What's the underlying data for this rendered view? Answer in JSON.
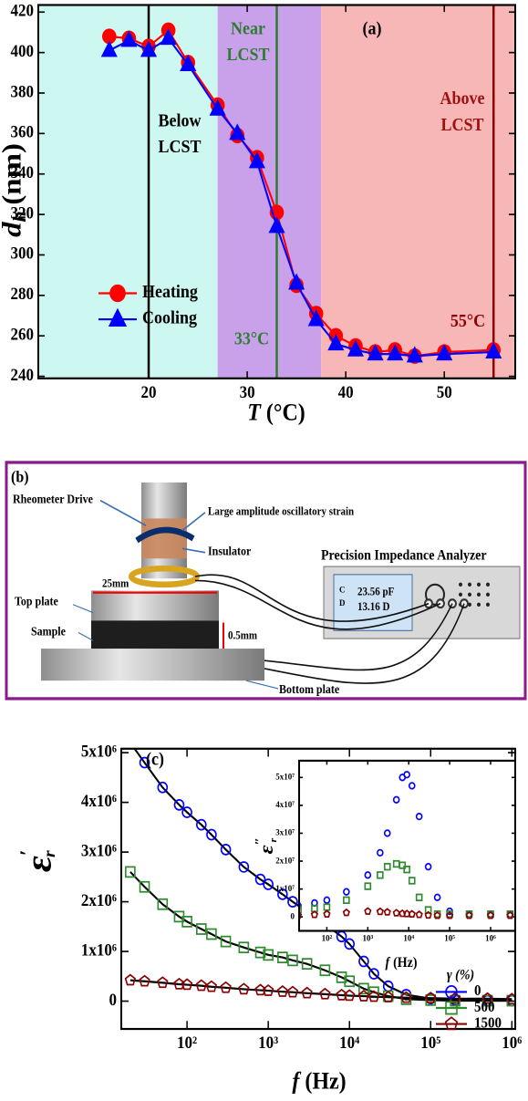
{
  "chart_data": [
    {
      "type": "line",
      "panel_label": "(a)",
      "xlabel": {
        "symbol": "T",
        "unit": "(°C)"
      },
      "ylabel": {
        "symbol": "d",
        "subscript": "h",
        "unit": "(nm)"
      },
      "x": [
        16,
        18,
        20,
        22,
        24,
        27,
        29,
        31,
        33,
        35,
        37,
        39,
        41,
        43,
        45,
        47,
        50,
        55
      ],
      "series": [
        {
          "name": "Heating",
          "color": "#ff0000",
          "marker": "circle",
          "values": [
            408,
            407,
            403,
            411,
            395,
            374,
            359,
            348,
            321,
            285,
            271,
            260,
            255,
            252,
            253,
            250,
            252,
            253
          ]
        },
        {
          "name": "Cooling",
          "color": "#0000ff",
          "marker": "triangle",
          "values": [
            401,
            406,
            401,
            407,
            394,
            372,
            360,
            346,
            314,
            286,
            268,
            256,
            253,
            251,
            251,
            250,
            251,
            252
          ]
        }
      ],
      "filled_markers": true,
      "xlim": [
        8.8,
        57.2
      ],
      "ylim": [
        239,
        423.5
      ],
      "xticks": [
        20,
        30,
        40,
        50
      ],
      "yticks": [
        240,
        260,
        280,
        300,
        320,
        340,
        360,
        380,
        400,
        420
      ],
      "regions": [
        {
          "label": [
            "Below",
            "LCST"
          ],
          "range": [
            8.8,
            27
          ],
          "color": "#cdf8f1",
          "label_color": "#000000"
        },
        {
          "label": [
            "Near",
            "LCST"
          ],
          "range": [
            27,
            37.5
          ],
          "color": "#c9a0ea",
          "label_color": "#2e7d32"
        },
        {
          "label": [
            "Above",
            "LCST"
          ],
          "range": [
            37.5,
            57.2
          ],
          "color": "#f7b7b7",
          "label_color": "#a01010"
        }
      ],
      "vlines": [
        {
          "x": 20,
          "color": "#000000"
        },
        {
          "x": 33,
          "color": "#2e7d32",
          "label": "33°C"
        },
        {
          "x": 55,
          "color": "#8b0000",
          "label": "55°C"
        }
      ],
      "legend": {
        "position": "lower left"
      }
    },
    {
      "type": "line",
      "log_x": true,
      "panel_label": "(c)",
      "xlabel": {
        "symbol": "f",
        "unit": "(Hz)"
      },
      "ylabel": {
        "symbol": "ε",
        "prime": "′",
        "subscript": "r"
      },
      "x": [
        20,
        30,
        50,
        80,
        100,
        150,
        200,
        300,
        500,
        800,
        1000,
        1500,
        2000,
        3000,
        5000,
        8000,
        10000,
        15000,
        20000,
        30000,
        50000,
        100000,
        200000,
        500000,
        1000000
      ],
      "series": [
        {
          "name": "0",
          "color": "#0000ff",
          "marker": "circle",
          "values": [
            5200000,
            4800000,
            4300000,
            3950000,
            3800000,
            3550000,
            3350000,
            3050000,
            2700000,
            2450000,
            2350000,
            2150000,
            2000000,
            1800000,
            1550000,
            1300000,
            1150000,
            800000,
            550000,
            300000,
            130000,
            50000,
            20000,
            10000,
            10000
          ]
        },
        {
          "name": "500",
          "color": "#2e8b2e",
          "marker": "square",
          "values": [
            2600000,
            2300000,
            1950000,
            1700000,
            1600000,
            1450000,
            1350000,
            1200000,
            1080000,
            980000,
            930000,
            880000,
            820000,
            750000,
            620000,
            480000,
            400000,
            250000,
            180000,
            100000,
            40000,
            20000,
            10000,
            10000,
            10000
          ]
        },
        {
          "name": "1500",
          "color": "#8b0000",
          "marker": "pentagon",
          "values": [
            420000,
            400000,
            370000,
            340000,
            330000,
            310000,
            290000,
            270000,
            240000,
            220000,
            210000,
            190000,
            180000,
            160000,
            140000,
            120000,
            110000,
            100000,
            90000,
            80000,
            70000,
            60000,
            50000,
            50000,
            40000
          ]
        }
      ],
      "fit_color": "#000000",
      "xlim": [
        15.5,
        1100000
      ],
      "ylim": [
        -560000,
        5080000
      ],
      "xticks": [
        {
          "value": 100,
          "label": "10²"
        },
        {
          "value": 1000,
          "label": "10³"
        },
        {
          "value": 10000,
          "label": "10⁴"
        },
        {
          "value": 100000,
          "label": "10⁵"
        },
        {
          "value": 1000000,
          "label": "10⁶"
        }
      ],
      "yticks": [
        0,
        {
          "value": 1000000,
          "label": "1x10⁶"
        },
        {
          "value": 2000000,
          "label": "2x10⁶"
        },
        {
          "value": 3000000,
          "label": "3x10⁶"
        },
        {
          "value": 4000000,
          "label": "4x10⁶"
        },
        {
          "value": 5000000,
          "label": "5x10⁶"
        }
      ],
      "legend": {
        "title": "γ (%)",
        "position": "lower right"
      },
      "inset": {
        "type": "scatter",
        "log_x": true,
        "xlabel": {
          "symbol": "f",
          "unit": "(Hz)"
        },
        "ylabel": {
          "symbol": "ε",
          "prime": "″",
          "subscript": "r"
        },
        "x": [
          20,
          50,
          100,
          300,
          1000,
          2000,
          3000,
          5000,
          7000,
          9000,
          12000,
          18000,
          30000,
          50000,
          100000,
          300000,
          1000000,
          3000000
        ],
        "series": [
          {
            "name": "0",
            "color": "#0000ff",
            "marker": "circle",
            "values": [
              4000000,
              5000000,
              6000000,
              9000000,
              15000000,
              23000000,
              30000000,
              42000000,
              50000000,
              51000000,
              47000000,
              36000000,
              18000000,
              7000000,
              2000000,
              1000000,
              1000000,
              1000000
            ]
          },
          {
            "name": "500",
            "color": "#2e8b2e",
            "marker": "square",
            "values": [
              2500000,
              3000000,
              3500000,
              6000000,
              11000000,
              15000000,
              18000000,
              19000000,
              18500000,
              17000000,
              13000000,
              7000000,
              2500000,
              1000000,
              1000000,
              1000000,
              1000000,
              1000000
            ]
          },
          {
            "name": "1500",
            "color": "#8b0000",
            "marker": "pentagon",
            "values": [
              500000,
              800000,
              1000000,
              1500000,
              2000000,
              1900000,
              1700000,
              1400000,
              1200000,
              1100000,
              1000000,
              800000,
              600000,
              500000,
              500000,
              500000,
              500000,
              500000
            ]
          }
        ],
        "xlim": [
          21,
          4000000
        ],
        "ylim": [
          -5000000,
          56000000
        ],
        "xticks": [
          {
            "value": 100,
            "label": "10²"
          },
          {
            "value": 1000,
            "label": "10³"
          },
          {
            "value": 10000,
            "label": "10⁴"
          },
          {
            "value": 100000,
            "label": "10⁵"
          },
          {
            "value": 1000000,
            "label": "10⁶"
          }
        ],
        "yticks": [
          0,
          {
            "value": 10000000,
            "label": "1x10⁷"
          },
          {
            "value": 20000000,
            "label": "2x10⁷"
          },
          {
            "value": 30000000,
            "label": "3x10⁷"
          },
          {
            "value": 40000000,
            "label": "4x10⁷"
          },
          {
            "value": 50000000,
            "label": "5x10⁷"
          }
        ]
      }
    }
  ],
  "diagram": {
    "panel_label": "(b)",
    "rheometer": "Rheometer  Drive",
    "strain": "Large amplitude oscillatory strain",
    "insulator": "Insulator",
    "analyzer": "Precision Impedance Analyzer",
    "screen": [
      "23.56 pF",
      "13.16 D"
    ],
    "screen_keys": [
      "C",
      "D"
    ],
    "top_plate": "Top plate",
    "diameter": "25mm",
    "sample": "Sample",
    "gap": "0.5mm",
    "bottom_plate": "Bottom plate"
  }
}
